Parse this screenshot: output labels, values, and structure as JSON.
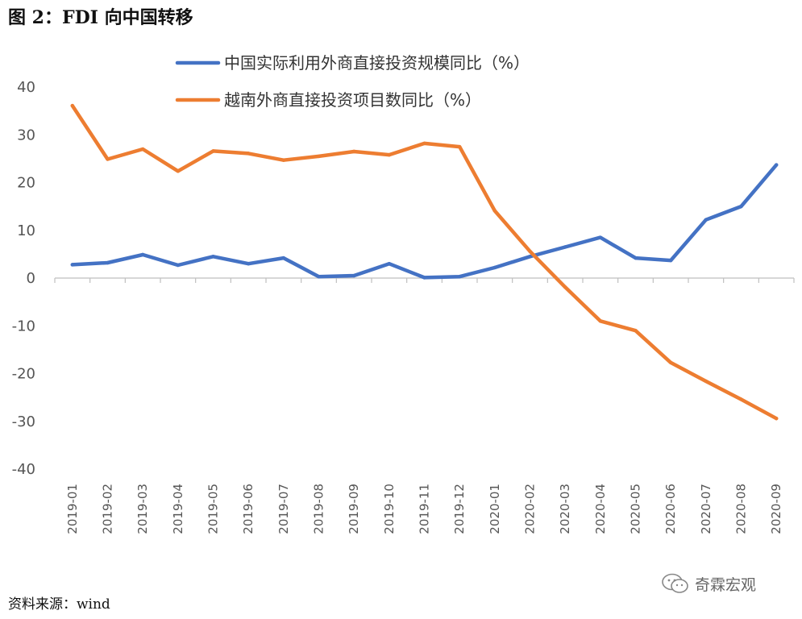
{
  "figure": {
    "title": "图 2：FDI 向中国转移",
    "source": "资料来源：wind",
    "watermark": "奇霖宏观"
  },
  "chart_data": {
    "type": "line",
    "title": "图 2：FDI 向中国转移",
    "xlabel": "",
    "ylabel": "",
    "ylim": [
      -40,
      40
    ],
    "yticks": [
      -40,
      -30,
      -20,
      -10,
      0,
      10,
      20,
      30,
      40
    ],
    "grid": false,
    "legend_position": "top",
    "categories": [
      "2019-01",
      "2019-02",
      "2019-03",
      "2019-04",
      "2019-05",
      "2019-06",
      "2019-07",
      "2019-08",
      "2019-09",
      "2019-10",
      "2019-11",
      "2019-12",
      "2020-01",
      "2020-02",
      "2020-03",
      "2020-04",
      "2020-05",
      "2020-06",
      "2020-07",
      "2020-08",
      "2020-09"
    ],
    "series": [
      {
        "name": "中国实际利用外商直接投资规模同比（%）",
        "color": "#4472C4",
        "values": [
          2.8,
          3.2,
          4.9,
          2.7,
          4.5,
          3.0,
          4.2,
          0.3,
          0.5,
          3.0,
          0.1,
          0.3,
          2.2,
          4.5,
          6.5,
          8.5,
          4.2,
          3.7,
          12.2,
          15.0,
          23.7
        ]
      },
      {
        "name": "越南外商直接投资项目数同比（%）",
        "color": "#ED7D31",
        "values": [
          36.1,
          24.9,
          27.0,
          22.4,
          26.6,
          26.1,
          24.7,
          25.5,
          26.5,
          25.8,
          28.2,
          27.5,
          14.1,
          5.6,
          -1.9,
          -9.0,
          -11.0,
          -17.7,
          -21.6,
          -25.4,
          -29.4
        ]
      }
    ]
  }
}
